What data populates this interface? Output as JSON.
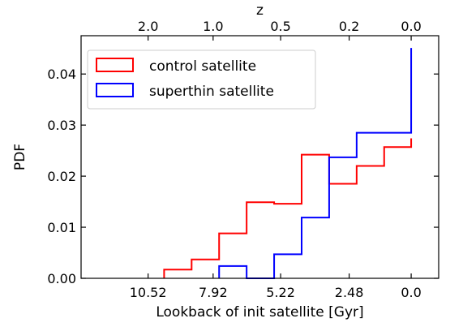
{
  "chart_data": {
    "type": "step-histogram",
    "xlabel": "Lookback of init satellite [Gyr]",
    "ylabel": "PDF",
    "top_xlabel": "z",
    "xlim": [
      13.2,
      -1.1
    ],
    "ylim": [
      0,
      0.0475
    ],
    "x_ticks": [
      10.52,
      7.92,
      5.22,
      2.48,
      0.0
    ],
    "x_tick_labels": [
      "10.52",
      "7.92",
      "5.22",
      "2.48",
      "0.0"
    ],
    "y_ticks": [
      0,
      0.01,
      0.02,
      0.03,
      0.04
    ],
    "y_tick_labels": [
      "0.00",
      "0.01",
      "0.02",
      "0.03",
      "0.04"
    ],
    "top_ticks": [
      10.52,
      7.92,
      5.22,
      2.48,
      0.0
    ],
    "top_tick_labels": [
      "2.0",
      "1.0",
      "0.5",
      "0.2",
      "0.0"
    ],
    "legend_position": "upper-left",
    "series": [
      {
        "name": "control satellite",
        "color": "#ff0000",
        "bin_edges": [
          9.88,
          8.78,
          7.68,
          6.58,
          5.48,
          4.38,
          3.28,
          2.18,
          1.08,
          0.0
        ],
        "values": [
          0.0017,
          0.0037,
          0.0088,
          0.0149,
          0.0146,
          0.0242,
          0.0185,
          0.022,
          0.0257,
          0.0274
        ]
      },
      {
        "name": "superthin satellite",
        "color": "#0000ff",
        "bin_edges": [
          7.68,
          6.58,
          5.48,
          4.38,
          3.28,
          2.18,
          0.0
        ],
        "values": [
          0.0024,
          0.0,
          0.0047,
          0.0119,
          0.0237,
          0.0285,
          0.0451
        ]
      }
    ]
  }
}
